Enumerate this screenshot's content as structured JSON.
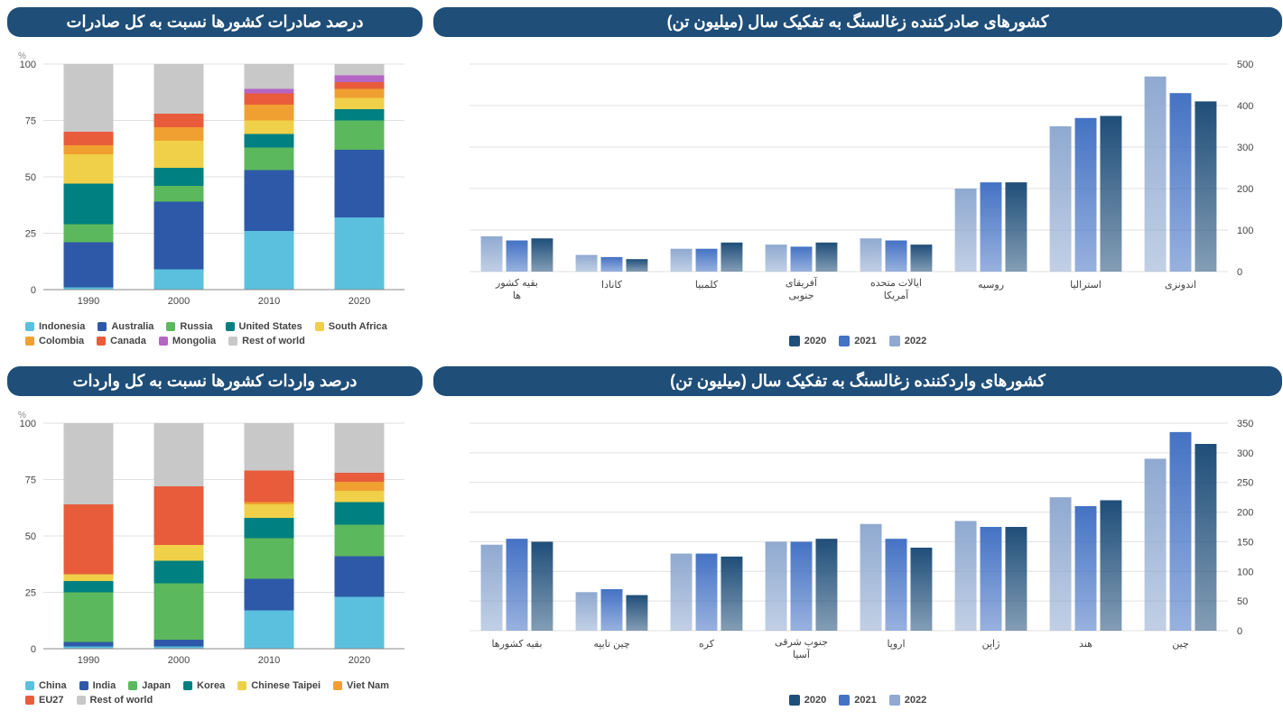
{
  "colors": {
    "header_bg": "#1f4e79",
    "header_fg": "#ffffff",
    "grid": "#e0e0e0",
    "axis_text": "#444444"
  },
  "grouped_series_colors": {
    "y2022": "#8fa9d0",
    "y2021": "#4472c4",
    "y2020": "#1f4e79"
  },
  "grouped_legend": [
    "2020",
    "2021",
    "2022"
  ],
  "top_left": {
    "title": "درصد صادرات کشورها نسبت به کل صادرات",
    "y_unit": "%",
    "categories": [
      "1990",
      "2000",
      "2010",
      "2020"
    ],
    "ylim": [
      0,
      100
    ],
    "ytick_step": 25,
    "series": [
      {
        "name": "Indonesia",
        "color": "#5bc0de",
        "values": [
          1,
          9,
          26,
          32
        ]
      },
      {
        "name": "Australia",
        "color": "#2e59a8",
        "values": [
          20,
          30,
          27,
          30
        ]
      },
      {
        "name": "Russia",
        "color": "#5cb85c",
        "values": [
          8,
          7,
          10,
          13
        ]
      },
      {
        "name": "United States",
        "color": "#008080",
        "values": [
          18,
          8,
          6,
          5
        ]
      },
      {
        "name": "South Africa",
        "color": "#f0d048",
        "values": [
          13,
          12,
          6,
          5
        ]
      },
      {
        "name": "Colombia",
        "color": "#f0a030",
        "values": [
          4,
          6,
          7,
          4
        ]
      },
      {
        "name": "Canada",
        "color": "#e85c3c",
        "values": [
          6,
          6,
          5,
          3
        ]
      },
      {
        "name": "Mongolia",
        "color": "#b565c4",
        "values": [
          0,
          0,
          2,
          3
        ]
      },
      {
        "name": "Rest of world",
        "color": "#c8c8c8",
        "values": [
          30,
          22,
          11,
          5
        ]
      }
    ]
  },
  "top_right": {
    "title": "کشورهای صادرکننده زغالسنگ به تفکیک سال (میلیون تن)",
    "categories_rtl": [
      "اندونزی",
      "استرالیا",
      "روسیه",
      "ایالات متحده آمریکا",
      "آفریقای جنوبی",
      "کلمبیا",
      "کانادا",
      "بقیه کشور ها"
    ],
    "ylim": [
      0,
      500
    ],
    "ytick_step": 100,
    "data": {
      "y2022": [
        470,
        350,
        200,
        80,
        65,
        55,
        40,
        85
      ],
      "y2021": [
        430,
        370,
        215,
        75,
        60,
        55,
        35,
        75
      ],
      "y2020": [
        410,
        375,
        215,
        65,
        70,
        70,
        30,
        80
      ]
    }
  },
  "bottom_left": {
    "title": "درصد واردات کشورها نسبت به کل واردات",
    "y_unit": "%",
    "categories": [
      "1990",
      "2000",
      "2010",
      "2020"
    ],
    "ylim": [
      0,
      100
    ],
    "ytick_step": 25,
    "series": [
      {
        "name": "China",
        "color": "#5bc0de",
        "values": [
          1,
          1,
          17,
          23
        ]
      },
      {
        "name": "India",
        "color": "#2e59a8",
        "values": [
          2,
          3,
          14,
          18
        ]
      },
      {
        "name": "Japan",
        "color": "#5cb85c",
        "values": [
          22,
          25,
          18,
          14
        ]
      },
      {
        "name": "Korea",
        "color": "#008080",
        "values": [
          5,
          10,
          9,
          10
        ]
      },
      {
        "name": "Chinese Taipei",
        "color": "#f0d048",
        "values": [
          3,
          7,
          6,
          5
        ]
      },
      {
        "name": "Viet Nam",
        "color": "#f0a030",
        "values": [
          0,
          0,
          1,
          4
        ]
      },
      {
        "name": "EU27",
        "color": "#e85c3c",
        "values": [
          31,
          26,
          14,
          4
        ]
      },
      {
        "name": "Rest of world",
        "color": "#c8c8c8",
        "values": [
          36,
          28,
          21,
          22
        ]
      }
    ]
  },
  "bottom_right": {
    "title": "کشورهای واردکننده زغالسنگ به تفکیک سال (میلیون تن)",
    "categories_rtl": [
      "چین",
      "هند",
      "ژاپن",
      "اروپا",
      "جنوب شرقی آسیا",
      "کره",
      "چین تایپه",
      "بقیه کشورها"
    ],
    "ylim": [
      0,
      350
    ],
    "ytick_step": 50,
    "data": {
      "y2022": [
        290,
        225,
        185,
        180,
        150,
        130,
        65,
        145
      ],
      "y2021": [
        335,
        210,
        175,
        155,
        150,
        130,
        70,
        155
      ],
      "y2020": [
        315,
        220,
        175,
        140,
        155,
        125,
        60,
        150
      ]
    }
  }
}
